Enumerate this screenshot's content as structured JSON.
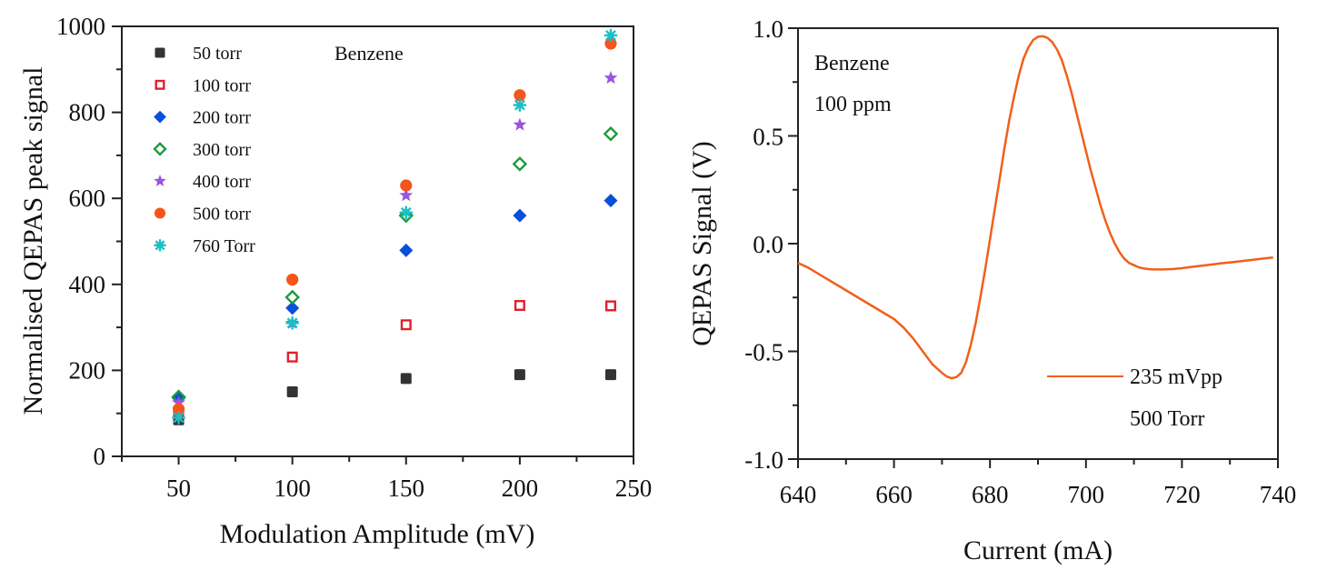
{
  "chart_data": [
    {
      "type": "scatter",
      "title": "",
      "annotation": "Benzene",
      "xlabel": "Modulation Amplitude (mV)",
      "ylabel": "Normalised QEPAS peak signal",
      "xlim": [
        25,
        250
      ],
      "ylim": [
        0,
        1000
      ],
      "xticks": [
        50,
        100,
        150,
        200,
        250
      ],
      "xtick_labels": [
        "50",
        "100",
        "150",
        "200",
        "250"
      ],
      "yticks": [
        0,
        200,
        400,
        600,
        800,
        1000
      ],
      "ytick_labels": [
        "0",
        "200",
        "400",
        "600",
        "800",
        "1000"
      ],
      "grid": false,
      "legend_position": "top-left",
      "x": [
        50,
        100,
        150,
        200,
        240
      ],
      "series": [
        {
          "name": "50 torr",
          "marker": "filled-square",
          "color": "#333333",
          "values": [
            85,
            150,
            181,
            190,
            190
          ]
        },
        {
          "name": "100 torr",
          "marker": "open-square",
          "color": "#e0202a",
          "values": [
            100,
            231,
            306,
            351,
            350
          ]
        },
        {
          "name": "200 torr",
          "marker": "filled-diamond",
          "color": "#0a4fd8",
          "values": [
            135,
            345,
            479,
            560,
            595
          ]
        },
        {
          "name": "300 torr",
          "marker": "open-diamond",
          "color": "#1f9a3c",
          "values": [
            138,
            370,
            560,
            680,
            750
          ]
        },
        {
          "name": "400 torr",
          "marker": "star",
          "color": "#9955dd",
          "values": [
            125,
            310,
            607,
            771,
            880
          ]
        },
        {
          "name": "500 torr",
          "marker": "filled-circle",
          "color": "#f5541a",
          "values": [
            110,
            411,
            630,
            840,
            960
          ]
        },
        {
          "name": "760 Torr",
          "marker": "asterisk",
          "color": "#1bbfc4",
          "values": [
            90,
            310,
            567,
            817,
            979
          ]
        }
      ]
    },
    {
      "type": "line",
      "title": "",
      "annotation_lines": [
        "Benzene",
        "100 ppm"
      ],
      "xlabel": "Current (mA)",
      "ylabel": "QEPAS Signal (V)",
      "xlim": [
        640,
        740
      ],
      "ylim": [
        -1.0,
        1.0
      ],
      "xticks": [
        640,
        660,
        680,
        700,
        720,
        740
      ],
      "xtick_labels": [
        "640",
        "660",
        "680",
        "700",
        "720",
        "740"
      ],
      "yticks": [
        -1.0,
        -0.5,
        0.0,
        0.5,
        1.0
      ],
      "ytick_labels": [
        "-1.0",
        "-0.5",
        "0.0",
        "0.5",
        "1.0"
      ],
      "grid": false,
      "legend_position": "bottom-right",
      "legend": [
        "235 mVpp",
        "500 Torr"
      ],
      "series": [
        {
          "name": "235 mVpp",
          "color": "#f0601a",
          "x": [
            640,
            642,
            645,
            648,
            651,
            654,
            657,
            660,
            662,
            664,
            666,
            668,
            670,
            671,
            672,
            673,
            674,
            675,
            676,
            677,
            678,
            679,
            680,
            681,
            682,
            683,
            684,
            685,
            686,
            687,
            688,
            689,
            690,
            691,
            692,
            693,
            694,
            695,
            696,
            697,
            698,
            699,
            700,
            701,
            702,
            703,
            704,
            705,
            706,
            707,
            708,
            709,
            710,
            711,
            712,
            713,
            714,
            716,
            718,
            720,
            722,
            725,
            728,
            731,
            734,
            737,
            739
          ],
          "y": [
            -0.09,
            -0.11,
            -0.15,
            -0.19,
            -0.23,
            -0.27,
            -0.31,
            -0.35,
            -0.39,
            -0.44,
            -0.5,
            -0.56,
            -0.6,
            -0.617,
            -0.625,
            -0.62,
            -0.6,
            -0.55,
            -0.47,
            -0.37,
            -0.25,
            -0.12,
            0.02,
            0.16,
            0.3,
            0.44,
            0.57,
            0.68,
            0.78,
            0.86,
            0.91,
            0.945,
            0.96,
            0.963,
            0.955,
            0.935,
            0.9,
            0.85,
            0.78,
            0.7,
            0.61,
            0.52,
            0.43,
            0.34,
            0.26,
            0.18,
            0.11,
            0.05,
            0.0,
            -0.04,
            -0.07,
            -0.09,
            -0.1,
            -0.11,
            -0.115,
            -0.118,
            -0.12,
            -0.12,
            -0.118,
            -0.114,
            -0.108,
            -0.1,
            -0.092,
            -0.085,
            -0.077,
            -0.069,
            -0.064
          ]
        }
      ]
    }
  ]
}
